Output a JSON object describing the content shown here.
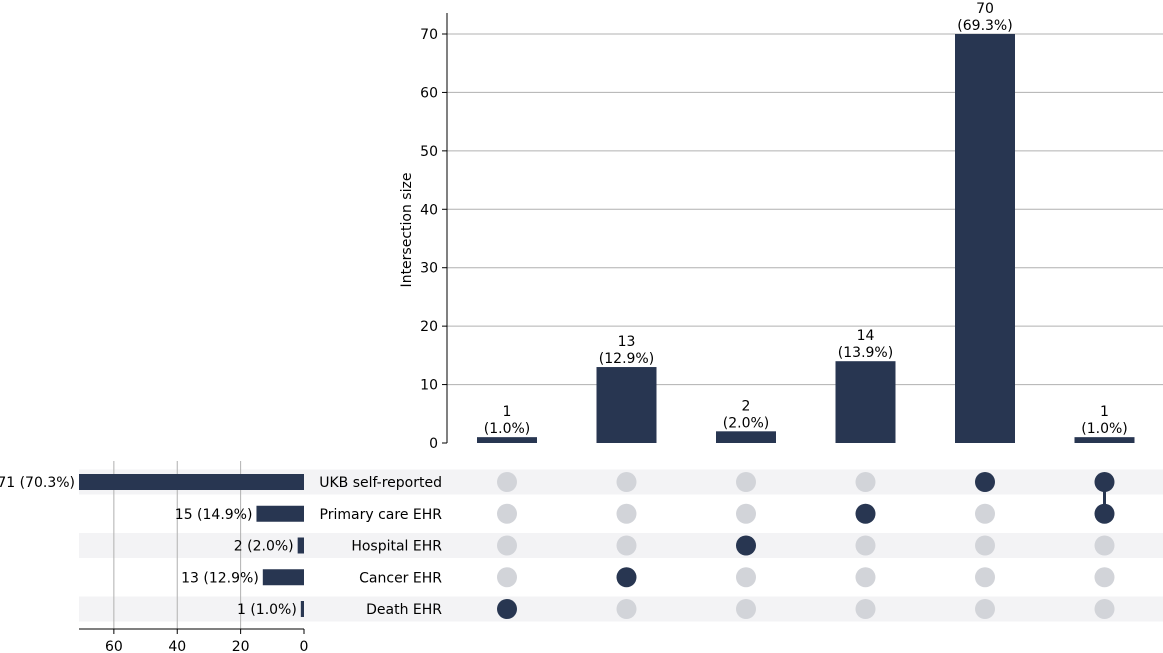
{
  "chart_data": {
    "type": "upset",
    "ylabel": "Intersection size",
    "y_ticks": [
      0,
      10,
      20,
      30,
      40,
      50,
      60,
      70
    ],
    "ylim": [
      0,
      73
    ],
    "grid": true,
    "bar_color": "#283651",
    "inactive_dot_color": "#d2d4d9",
    "stripe_color": "#f3f3f5",
    "sets": [
      {
        "name": "UKB self-reported",
        "size": 71,
        "label": "71 (70.3%)"
      },
      {
        "name": "Primary care EHR",
        "size": 15,
        "label": "15 (14.9%)"
      },
      {
        "name": "Hospital EHR",
        "size": 2,
        "label": "2 (2.0%)"
      },
      {
        "name": "Cancer EHR",
        "size": 13,
        "label": "13 (12.9%)"
      },
      {
        "name": "Death EHR",
        "size": 1,
        "label": "1 (1.0%)"
      }
    ],
    "set_size_ticks": [
      60,
      40,
      20,
      0
    ],
    "set_size_xlim": [
      0,
      71
    ],
    "intersections": [
      {
        "value": 1,
        "count_label": "1",
        "pct_label": "(1.0%)",
        "members": [
          4
        ]
      },
      {
        "value": 13,
        "count_label": "13",
        "pct_label": "(12.9%)",
        "members": [
          3
        ]
      },
      {
        "value": 2,
        "count_label": "2",
        "pct_label": "(2.0%)",
        "members": [
          2
        ]
      },
      {
        "value": 14,
        "count_label": "14",
        "pct_label": "(13.9%)",
        "members": [
          1
        ]
      },
      {
        "value": 70,
        "count_label": "70",
        "pct_label": "(69.3%)",
        "members": [
          0
        ]
      },
      {
        "value": 1,
        "count_label": "1",
        "pct_label": "(1.0%)",
        "members": [
          0,
          1
        ]
      }
    ]
  }
}
